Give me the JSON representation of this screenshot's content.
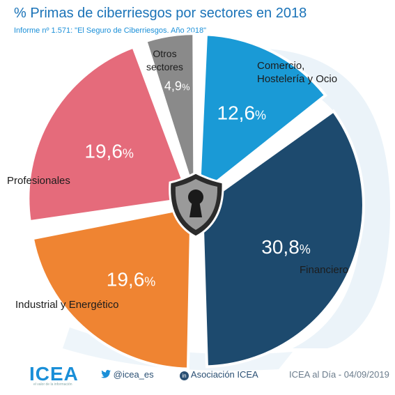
{
  "header": {
    "title": "% Primas de ciberriesgos por sectores en 2018",
    "subtitle": "Informe nº 1.571: \"El Seguro de Ciberriesgos. Año 2018\""
  },
  "chart_data": {
    "type": "pie",
    "title": "% Primas de ciberriesgos por sectores en 2018",
    "unit": "%",
    "slices": [
      {
        "label": "Comercio, Hostelería y Ocio",
        "value": 12.6,
        "value_label": "12,6",
        "color": "#1a9ad6"
      },
      {
        "label": "Financiero",
        "value": 30.8,
        "value_label": "30,8",
        "color": "#1d4a6e"
      },
      {
        "label": "Industrial y Energético",
        "value": 19.6,
        "value_label": "19,6",
        "color": "#ef8432"
      },
      {
        "label": "Profesionales",
        "value": 19.6,
        "value_label": "19,6",
        "color": "#e56b7b"
      },
      {
        "label": "Otros sectores",
        "value": 4.9,
        "value_label": "4,9",
        "color": "#8a8a8a"
      }
    ]
  },
  "labels": {
    "comercio_l1": "Comercio,",
    "comercio_l2": "Hostelería y Ocio",
    "financiero": "Financiero",
    "industrial": "Industrial y Energético",
    "profesionales": "Profesionales",
    "otros_l1": "Otros",
    "otros_l2": "sectores"
  },
  "footer": {
    "brand": "ICEA",
    "brand_tagline": "el valor de la información",
    "twitter": "@icea_es",
    "linkedin": "Asociación ICEA",
    "date_note": "ICEA al Día - 04/09/2019"
  },
  "icons": [
    "twitter-icon",
    "linkedin-icon",
    "lock-shield-icon",
    "icea-logo-icon"
  ]
}
